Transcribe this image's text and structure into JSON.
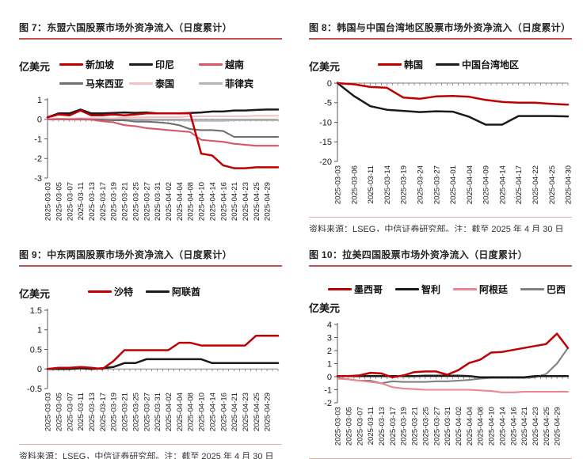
{
  "source_note": "资料来源：LSEG，中信证券研究部。注：截至 2025 年 4 月 30 日",
  "chart_data": [
    {
      "type": "line",
      "title": "图 7：东盟六国股票市场外资净流入（日度累计）",
      "unit": "亿美元",
      "ylim": [
        -3,
        1
      ],
      "yticks": [
        "1",
        "0",
        "-1",
        "-2",
        "-3"
      ],
      "legend_position": "right-3col",
      "x_minor_ticks": 43,
      "x_labels": [
        "2025-03-03",
        "2025-03-05",
        "2025-03-07",
        "2025-03-11",
        "2025-03-13",
        "2025-03-17",
        "2025-03-19",
        "2025-03-21",
        "2025-03-25",
        "2025-03-27",
        "2025-03-31",
        "2025-04-02",
        "2025-04-04",
        "2025-04-08",
        "2025-04-10",
        "2025-04-14",
        "2025-04-16",
        "2025-04-21",
        "2025-04-23",
        "2025-04-25",
        "2025-04-29"
      ],
      "series": [
        {
          "name": "新加坡",
          "color": "#c00000",
          "values": [
            0.1,
            0.25,
            0.2,
            0.45,
            0.2,
            0.2,
            0.25,
            0.2,
            0.25,
            0.3,
            0.3,
            0.3,
            0.3,
            0.3,
            -1.75,
            -1.85,
            -2.35,
            -2.5,
            -2.5,
            -2.45,
            -2.45,
            -2.45
          ]
        },
        {
          "name": "印尼",
          "color": "#1a1a1a",
          "values": [
            0.1,
            0.3,
            0.3,
            0.5,
            0.3,
            0.3,
            0.32,
            0.35,
            0.33,
            0.35,
            0.3,
            0.3,
            0.3,
            0.32,
            0.35,
            0.4,
            0.4,
            0.45,
            0.45,
            0.48,
            0.5,
            0.5
          ]
        },
        {
          "name": "越南",
          "color": "#d8566a",
          "values": [
            0,
            0.02,
            0,
            0.02,
            -0.02,
            -0.1,
            -0.15,
            -0.3,
            -0.35,
            -0.45,
            -0.5,
            -0.55,
            -0.6,
            -0.65,
            -1.05,
            -1.1,
            -1.15,
            -1.25,
            -1.3,
            -1.35,
            -1.35,
            -1.35
          ]
        },
        {
          "name": "马来西亚",
          "color": "#6f6f6f",
          "values": [
            0,
            0,
            0,
            0,
            0,
            -0.02,
            -0.05,
            -0.05,
            -0.12,
            -0.12,
            -0.15,
            -0.2,
            -0.3,
            -0.5,
            -0.55,
            -0.55,
            -0.6,
            -0.9,
            -0.9,
            -0.9,
            -0.9,
            -0.9
          ]
        },
        {
          "name": "泰国",
          "color": "#f2c3c6",
          "values": [
            0,
            0.02,
            0.03,
            0.05,
            0.05,
            0.05,
            0.05,
            0.08,
            0.1,
            0.1,
            0.12,
            0.12,
            0.12,
            0.15,
            0.15,
            0.15,
            0.15,
            0.15,
            0.15,
            0.18,
            0.18,
            0.18
          ]
        },
        {
          "name": "菲律宾",
          "color": "#b5b5b5",
          "values": [
            0,
            0,
            -0.02,
            -0.02,
            -0.03,
            -0.03,
            -0.05,
            -0.05,
            -0.05,
            -0.05,
            -0.05,
            -0.05,
            -0.05,
            -0.08,
            -0.08,
            -0.08,
            -0.08,
            -0.05,
            -0.05,
            -0.05,
            -0.05,
            -0.05
          ]
        }
      ]
    },
    {
      "type": "line",
      "title": "图 8：韩国与中国台湾地区股票市场外资净流入（日度累计）",
      "unit": "亿美元",
      "ylim": [
        -20,
        0
      ],
      "yticks": [
        "0",
        "-5",
        "-10",
        "-15",
        "-20"
      ],
      "legend_position": "right-center",
      "x_minor_ticks": 43,
      "x_labels": [
        "2025-03-03",
        "2025-03-06",
        "2025-03-11",
        "2025-03-14",
        "2025-03-19",
        "2025-03-24",
        "2025-03-27",
        "2025-04-01",
        "2025-04-04",
        "2025-04-09",
        "2025-04-14",
        "2025-04-17",
        "2025-04-22",
        "2025-04-25",
        "2025-04-30"
      ],
      "series": [
        {
          "name": "韩国",
          "color": "#c00000",
          "values": [
            0,
            -0.3,
            -1.0,
            -1.2,
            -3.7,
            -4.0,
            -3.4,
            -3.3,
            -3.5,
            -4.3,
            -4.8,
            -5.0,
            -5.0,
            -5.3,
            -5.5
          ]
        },
        {
          "name": "中国台湾地区",
          "color": "#1a1a1a",
          "values": [
            0,
            -3.3,
            -5.9,
            -6.8,
            -7.1,
            -7.4,
            -7.2,
            -7.3,
            -8.6,
            -10.6,
            -10.6,
            -8.4,
            -8.4,
            -8.4,
            -8.5
          ]
        }
      ]
    },
    {
      "type": "line",
      "title": "图 9：中东两国股票市场外资净流入（日度累计）",
      "unit": "亿美元",
      "ylim": [
        -0.5,
        1.5
      ],
      "yticks": [
        "1.5",
        "1",
        "0.5",
        "0",
        "-0.5"
      ],
      "legend_position": "right-center",
      "x_minor_ticks": 43,
      "x_labels": [
        "2025-03-03",
        "2025-03-05",
        "2025-03-07",
        "2025-03-11",
        "2025-03-13",
        "2025-03-17",
        "2025-03-19",
        "2025-03-21",
        "2025-03-25",
        "2025-03-27",
        "2025-03-31",
        "2025-04-02",
        "2025-04-04",
        "2025-04-08",
        "2025-04-10",
        "2025-04-14",
        "2025-04-16",
        "2025-04-21",
        "2025-04-23",
        "2025-04-25",
        "2025-04-29"
      ],
      "series": [
        {
          "name": "沙特",
          "color": "#c00000",
          "values": [
            0,
            0.03,
            0.03,
            0.05,
            0.03,
            0,
            0.2,
            0.48,
            0.48,
            0.48,
            0.48,
            0.48,
            0.67,
            0.67,
            0.6,
            0.6,
            0.6,
            0.6,
            0.6,
            0.85,
            0.85,
            0.85
          ]
        },
        {
          "name": "阿联酋",
          "color": "#1a1a1a",
          "values": [
            0,
            0,
            0,
            0.02,
            0,
            0.02,
            0.05,
            0.15,
            0.15,
            0.25,
            0.25,
            0.25,
            0.25,
            0.25,
            0.25,
            0.15,
            0.15,
            0.15,
            0.15,
            0.15,
            0.15,
            0.15
          ]
        }
      ]
    },
    {
      "type": "line",
      "title": "图 10：拉美四国股票市场外资净流入（日度累计）",
      "unit": "亿美元",
      "ylim": [
        -2,
        4
      ],
      "yticks": [
        "4",
        "3",
        "2",
        "1",
        "0",
        "-1",
        "-2"
      ],
      "legend_position": "top",
      "x_minor_ticks": 43,
      "x_labels": [
        "2025-03-03",
        "2025-03-05",
        "2025-03-07",
        "2025-03-11",
        "2025-03-13",
        "2025-03-17",
        "2025-03-19",
        "2025-03-21",
        "2025-03-25",
        "2025-03-27",
        "2025-03-31",
        "2025-04-02",
        "2025-04-04",
        "2025-04-08",
        "2025-04-10",
        "2025-04-14",
        "2025-04-16",
        "2025-04-21",
        "2025-04-23",
        "2025-04-25",
        "2025-04-29"
      ],
      "series": [
        {
          "name": "墨西哥",
          "color": "#c00000",
          "values": [
            0.05,
            0.05,
            0.1,
            0.3,
            0.25,
            -0.05,
            0.1,
            0.35,
            0.4,
            0.4,
            0.15,
            0.5,
            1.05,
            1.3,
            1.85,
            1.9,
            2.05,
            2.2,
            2.35,
            2.5,
            3.3,
            2.2
          ]
        },
        {
          "name": "智利",
          "color": "#1a1a1a",
          "values": [
            0.05,
            0.05,
            0.05,
            0.05,
            0.05,
            0.05,
            0.05,
            0.05,
            0.08,
            0.08,
            0.08,
            0.08,
            0.05,
            -0.05,
            -0.05,
            -0.05,
            -0.05,
            -0.05,
            0.05,
            0.05,
            0.05,
            0.05
          ]
        },
        {
          "name": "阿根廷",
          "color": "#ec8494",
          "values": [
            -0.15,
            -0.2,
            -0.3,
            -0.4,
            -0.5,
            -0.8,
            -0.9,
            -0.95,
            -1.0,
            -1.0,
            -1.0,
            -1.0,
            -1.0,
            -1.05,
            -1.1,
            -1.2,
            -1.2,
            -1.15,
            -1.15,
            -1.15,
            -1.15,
            -1.15
          ]
        },
        {
          "name": "巴西",
          "color": "#808080",
          "values": [
            -0.1,
            -0.2,
            -0.3,
            -0.3,
            -0.5,
            -0.35,
            -0.4,
            -0.4,
            -0.4,
            -0.35,
            -0.35,
            -0.3,
            -0.25,
            -0.15,
            -0.1,
            -0.1,
            -0.1,
            -0.1,
            -0.05,
            0.2,
            1.0,
            2.2
          ]
        }
      ]
    }
  ]
}
